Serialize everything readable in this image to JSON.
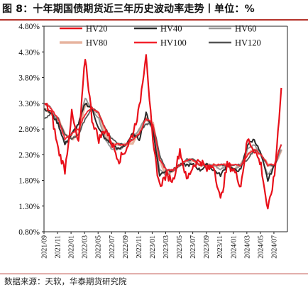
{
  "title": "图 8：十年期国债期货近三年历史波动率走势丨单位：%",
  "source": "数据来源：天软，华泰期货研究院",
  "chart_data": {
    "type": "line",
    "title": "图 8：十年期国债期货近三年历史波动率走势丨单位：%",
    "xlabel": "",
    "ylabel": "",
    "ylim": [
      0.008,
      0.048
    ],
    "yticks": [
      "0.80%",
      "1.30%",
      "1.80%",
      "2.30%",
      "2.80%",
      "3.30%",
      "3.80%",
      "4.30%",
      "4.80%"
    ],
    "ytick_values": [
      0.008,
      0.013,
      0.018,
      0.023,
      0.028,
      0.033,
      0.038,
      0.043,
      0.048
    ],
    "xlim": [
      "2021-09",
      "2024-09"
    ],
    "xticks": [
      "2021/09",
      "2021/11",
      "2022/01",
      "2022/03",
      "2022/05",
      "2022/07",
      "2022/09",
      "2022/11",
      "2023/01",
      "2023/03",
      "2023/05",
      "2023/07",
      "2023/09",
      "2023/11",
      "2024/01",
      "2024/03",
      "2024/05",
      "2024/07"
    ],
    "x": [
      "2021-09",
      "2021-10",
      "2021-11",
      "2021-12",
      "2022-01",
      "2022-02",
      "2022-03",
      "2022-04",
      "2022-05",
      "2022-06",
      "2022-07",
      "2022-08",
      "2022-09",
      "2022-10",
      "2022-11",
      "2022-12",
      "2023-01",
      "2023-02",
      "2023-03",
      "2023-04",
      "2023-05",
      "2023-06",
      "2023-07",
      "2023-08",
      "2023-09",
      "2023-10",
      "2023-11",
      "2023-12",
      "2024-01",
      "2024-02",
      "2024-03",
      "2024-04",
      "2024-05",
      "2024-06",
      "2024-07",
      "2024-08"
    ],
    "legend_position": "top",
    "series": [
      {
        "name": "HV20",
        "color": "#e8101a",
        "width": 2.2,
        "values": [
          0.033,
          0.031,
          0.024,
          0.02,
          0.031,
          0.025,
          0.042,
          0.03,
          0.026,
          0.028,
          0.025,
          0.022,
          0.024,
          0.027,
          0.032,
          0.043,
          0.025,
          0.017,
          0.019,
          0.018,
          0.024,
          0.018,
          0.021,
          0.022,
          0.02,
          0.021,
          0.014,
          0.021,
          0.02,
          0.017,
          0.026,
          0.024,
          0.021,
          0.012,
          0.019,
          0.036
        ]
      },
      {
        "name": "HV40",
        "color": "#2b2b2b",
        "width": 2.0,
        "values": [
          0.032,
          0.031,
          0.029,
          0.025,
          0.027,
          0.029,
          0.033,
          0.032,
          0.028,
          0.026,
          0.025,
          0.024,
          0.025,
          0.027,
          0.026,
          0.031,
          0.028,
          0.019,
          0.02,
          0.02,
          0.021,
          0.021,
          0.021,
          0.02,
          0.021,
          0.02,
          0.019,
          0.021,
          0.02,
          0.02,
          0.025,
          0.026,
          0.023,
          0.018,
          0.021,
          0.025
        ]
      },
      {
        "name": "HV60",
        "color": "#9a9a9a",
        "width": 2.0,
        "values": [
          0.033,
          0.032,
          0.029,
          0.025,
          0.027,
          0.029,
          0.034,
          0.032,
          0.03,
          0.026,
          0.024,
          0.024,
          0.025,
          0.026,
          0.028,
          0.03,
          0.028,
          0.02,
          0.019,
          0.02,
          0.021,
          0.022,
          0.021,
          0.021,
          0.021,
          0.021,
          0.02,
          0.021,
          0.02,
          0.021,
          0.024,
          0.025,
          0.023,
          0.019,
          0.021,
          0.024
        ]
      },
      {
        "name": "HV80",
        "color": "#e7b49f",
        "width": 3.4,
        "values": [
          0.032,
          0.031,
          0.03,
          0.027,
          0.026,
          0.027,
          0.033,
          0.032,
          0.031,
          0.027,
          0.025,
          0.025,
          0.025,
          0.025,
          0.028,
          0.03,
          0.029,
          0.022,
          0.019,
          0.02,
          0.021,
          0.022,
          0.022,
          0.021,
          0.021,
          0.021,
          0.021,
          0.021,
          0.02,
          0.021,
          0.023,
          0.024,
          0.023,
          0.021,
          0.021,
          0.024
        ]
      },
      {
        "name": "HV100",
        "color": "#f2232d",
        "width": 1.8,
        "values": [
          0.033,
          0.032,
          0.03,
          0.026,
          0.027,
          0.028,
          0.031,
          0.032,
          0.031,
          0.028,
          0.025,
          0.025,
          0.025,
          0.026,
          0.027,
          0.03,
          0.029,
          0.022,
          0.02,
          0.02,
          0.021,
          0.022,
          0.022,
          0.021,
          0.021,
          0.021,
          0.021,
          0.021,
          0.021,
          0.021,
          0.023,
          0.024,
          0.023,
          0.021,
          0.021,
          0.025
        ]
      },
      {
        "name": "HV120",
        "color": "#555555",
        "width": 1.8,
        "values": [
          0.03,
          0.031,
          0.03,
          0.027,
          0.026,
          0.027,
          0.03,
          0.032,
          0.031,
          0.028,
          0.026,
          0.025,
          0.025,
          0.026,
          0.027,
          0.029,
          0.029,
          0.023,
          0.02,
          0.02,
          0.021,
          0.022,
          0.022,
          0.021,
          0.021,
          0.021,
          0.021,
          0.021,
          0.021,
          0.021,
          0.022,
          0.024,
          0.023,
          0.021,
          0.021,
          0.024
        ]
      }
    ]
  }
}
